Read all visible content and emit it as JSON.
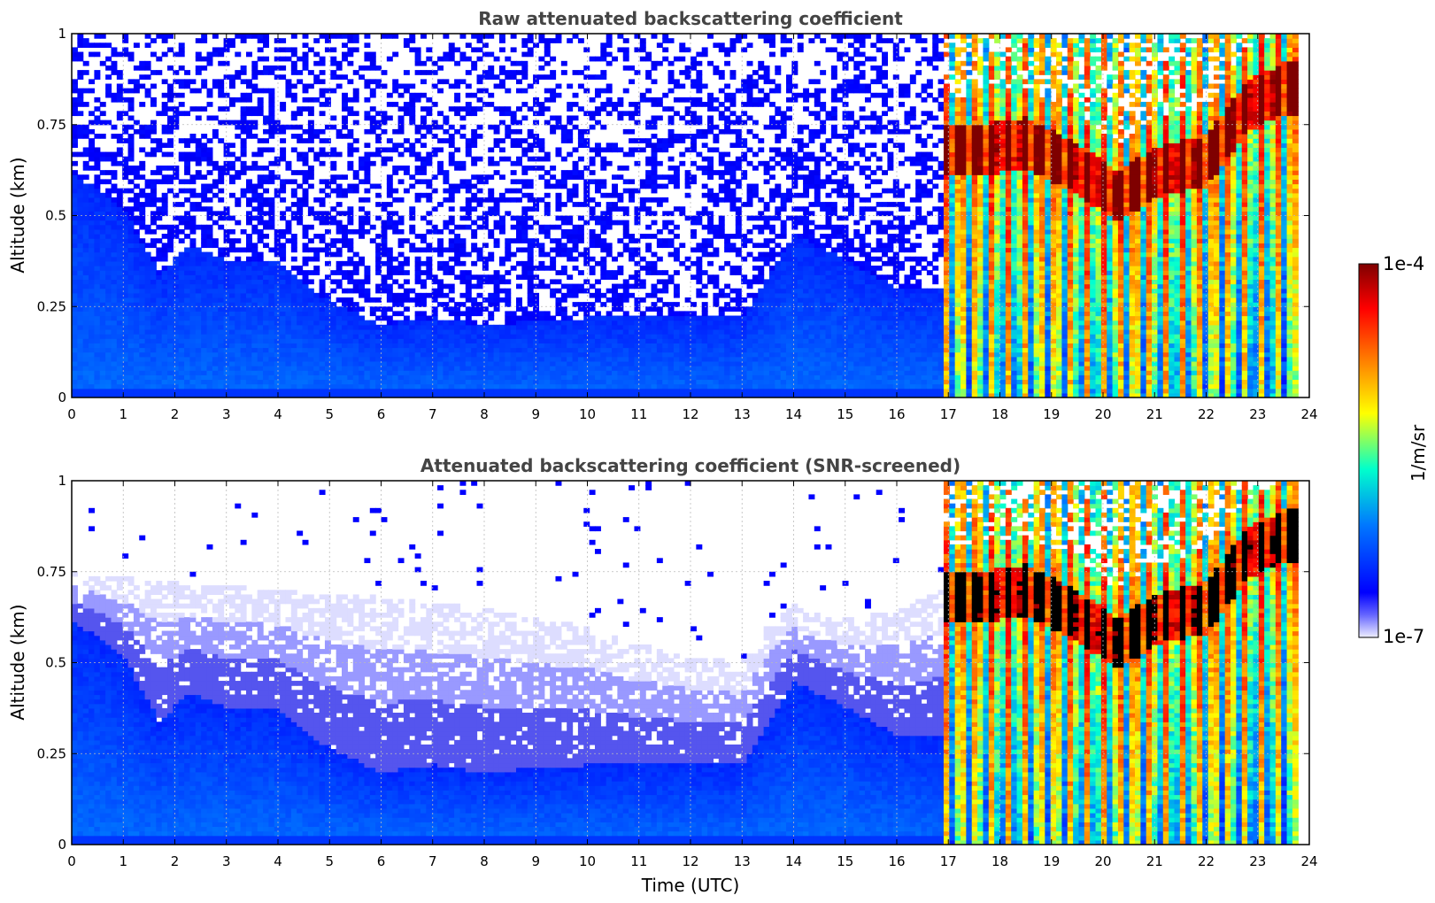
{
  "chart_data": [
    {
      "type": "heatmap",
      "title": "Raw attenuated backscattering coefficient",
      "xlabel": "",
      "ylabel": "Altitude (km)",
      "xlim": [
        0,
        24
      ],
      "ylim": [
        0,
        1
      ],
      "x_ticks": [
        "0",
        "1",
        "2",
        "3",
        "4",
        "5",
        "6",
        "7",
        "8",
        "9",
        "10",
        "11",
        "12",
        "13",
        "14",
        "15",
        "16",
        "17",
        "18",
        "19",
        "20",
        "21",
        "22",
        "23",
        "24"
      ],
      "y_ticks": [
        "0",
        "0.25",
        "0.5",
        "0.75",
        "1"
      ],
      "grid": true,
      "screened": false,
      "data_end_time": 23.8,
      "aerosol_layer_top_km": [
        [
          0,
          0.62
        ],
        [
          1,
          0.52
        ],
        [
          1.7,
          0.34
        ],
        [
          2.3,
          0.42
        ],
        [
          3,
          0.38
        ],
        [
          4,
          0.38
        ],
        [
          4.8,
          0.28
        ],
        [
          6,
          0.2
        ],
        [
          7,
          0.22
        ],
        [
          8,
          0.2
        ],
        [
          10,
          0.22
        ],
        [
          13,
          0.22
        ],
        [
          14,
          0.45
        ],
        [
          15,
          0.38
        ],
        [
          16,
          0.3
        ],
        [
          16.9,
          0.3
        ]
      ],
      "cloud_period_utc": [
        16.9,
        23.8
      ],
      "cloud_layer_center_km": [
        [
          17.6,
          0.68
        ],
        [
          18.5,
          0.7
        ],
        [
          19.5,
          0.63
        ],
        [
          20.3,
          0.55
        ],
        [
          21,
          0.62
        ],
        [
          22,
          0.65
        ],
        [
          22.8,
          0.8
        ],
        [
          23.5,
          0.85
        ]
      ]
    },
    {
      "type": "heatmap",
      "title": "Attenuated backscattering coefficient (SNR-screened)",
      "xlabel": "Time (UTC)",
      "ylabel": "Altitude (km)",
      "xlim": [
        0,
        24
      ],
      "ylim": [
        0,
        1
      ],
      "x_ticks": [
        "0",
        "1",
        "2",
        "3",
        "4",
        "5",
        "6",
        "7",
        "8",
        "9",
        "10",
        "11",
        "12",
        "13",
        "14",
        "15",
        "16",
        "17",
        "18",
        "19",
        "20",
        "21",
        "22",
        "23",
        "24"
      ],
      "y_ticks": [
        "0",
        "0.25",
        "0.5",
        "0.75",
        "1"
      ],
      "grid": true,
      "screened": true,
      "data_end_time": 23.8,
      "aerosol_layer_top_km": [
        [
          0,
          0.62
        ],
        [
          1,
          0.52
        ],
        [
          1.7,
          0.34
        ],
        [
          2.3,
          0.42
        ],
        [
          3,
          0.38
        ],
        [
          4,
          0.38
        ],
        [
          4.8,
          0.28
        ],
        [
          6,
          0.2
        ],
        [
          7,
          0.22
        ],
        [
          8,
          0.2
        ],
        [
          10,
          0.22
        ],
        [
          13,
          0.22
        ],
        [
          14,
          0.45
        ],
        [
          15,
          0.38
        ],
        [
          16,
          0.3
        ],
        [
          16.9,
          0.3
        ]
      ],
      "screened_top_km": [
        [
          0,
          0.75
        ],
        [
          2,
          0.72
        ],
        [
          4,
          0.7
        ],
        [
          6,
          0.68
        ],
        [
          8,
          0.65
        ],
        [
          9,
          0.62
        ],
        [
          10,
          0.6
        ],
        [
          11,
          0.55
        ],
        [
          12,
          0.52
        ],
        [
          13,
          0.5
        ],
        [
          13.5,
          0.6
        ],
        [
          14,
          0.66
        ],
        [
          15,
          0.62
        ],
        [
          16,
          0.65
        ],
        [
          16.9,
          0.7
        ]
      ],
      "cloud_period_utc": [
        16.9,
        23.8
      ],
      "cloud_layer_center_km": [
        [
          17.6,
          0.68
        ],
        [
          18.5,
          0.7
        ],
        [
          19.5,
          0.63
        ],
        [
          20.3,
          0.55
        ],
        [
          21,
          0.62
        ],
        [
          22,
          0.65
        ],
        [
          22.8,
          0.8
        ],
        [
          23.5,
          0.85
        ]
      ]
    }
  ],
  "colorbar": {
    "label": "1/m/sr",
    "max_label": "1e-4",
    "min_label": "1e-7",
    "colormap": "jet",
    "colors": [
      "#eeeeff",
      "#0000ff",
      "#00aaff",
      "#00ffcc",
      "#ffff00",
      "#ff7700",
      "#ff0000",
      "#7f0000"
    ]
  }
}
